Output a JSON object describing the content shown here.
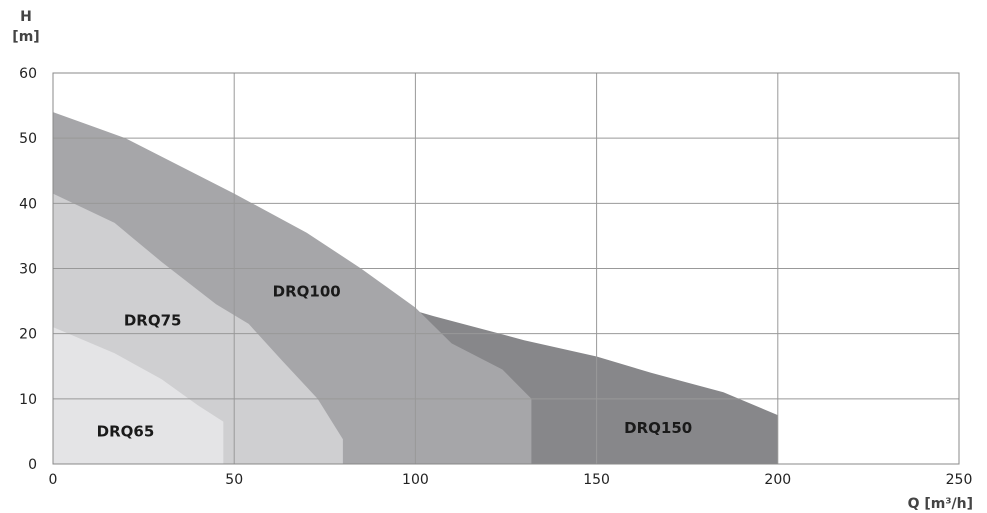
{
  "chart_data": {
    "type": "area",
    "title": "",
    "ylabel_line1": "H",
    "ylabel_line2": "[m]",
    "xlabel": "Q [m³/h]",
    "xlim": [
      0,
      250
    ],
    "ylim": [
      0,
      60
    ],
    "xticks": [
      0,
      50,
      100,
      150,
      200,
      250
    ],
    "yticks": [
      0,
      10,
      20,
      30,
      40,
      50,
      60
    ],
    "grid": true,
    "series": [
      {
        "name": "DRQ150",
        "color": "#87878a",
        "label_at": [
          167,
          5.5
        ],
        "points": [
          [
            0,
            54
          ],
          [
            100,
            23.5
          ],
          [
            105,
            22.7
          ],
          [
            130,
            19
          ],
          [
            150,
            16.5
          ],
          [
            165,
            14
          ],
          [
            185,
            11
          ],
          [
            200,
            7.5
          ],
          [
            200,
            0
          ],
          [
            0,
            0
          ]
        ]
      },
      {
        "name": "DRQ100",
        "color": "#a6a6a9",
        "label_at": [
          70,
          26.5
        ],
        "points": [
          [
            0,
            54
          ],
          [
            20,
            50
          ],
          [
            50,
            41.5
          ],
          [
            70,
            35.5
          ],
          [
            85,
            30
          ],
          [
            100,
            24
          ],
          [
            110,
            18.5
          ],
          [
            124,
            14.5
          ],
          [
            132,
            10
          ],
          [
            132,
            0
          ],
          [
            0,
            0
          ]
        ]
      },
      {
        "name": "DRQ75",
        "color": "#cfcfd1",
        "label_at": [
          27.5,
          22
        ],
        "points": [
          [
            0,
            41.5
          ],
          [
            17,
            37
          ],
          [
            30,
            31
          ],
          [
            45,
            24.5
          ],
          [
            54,
            21.5
          ],
          [
            63,
            16
          ],
          [
            73,
            10
          ],
          [
            80,
            3.8
          ],
          [
            80,
            0
          ],
          [
            0,
            0
          ]
        ]
      },
      {
        "name": "DRQ65",
        "color": "#e4e4e6",
        "label_at": [
          20,
          5
        ],
        "points": [
          [
            0,
            21
          ],
          [
            17,
            17
          ],
          [
            30,
            13
          ],
          [
            40,
            9
          ],
          [
            47,
            6.5
          ],
          [
            47,
            0
          ],
          [
            0,
            0
          ]
        ]
      }
    ]
  }
}
